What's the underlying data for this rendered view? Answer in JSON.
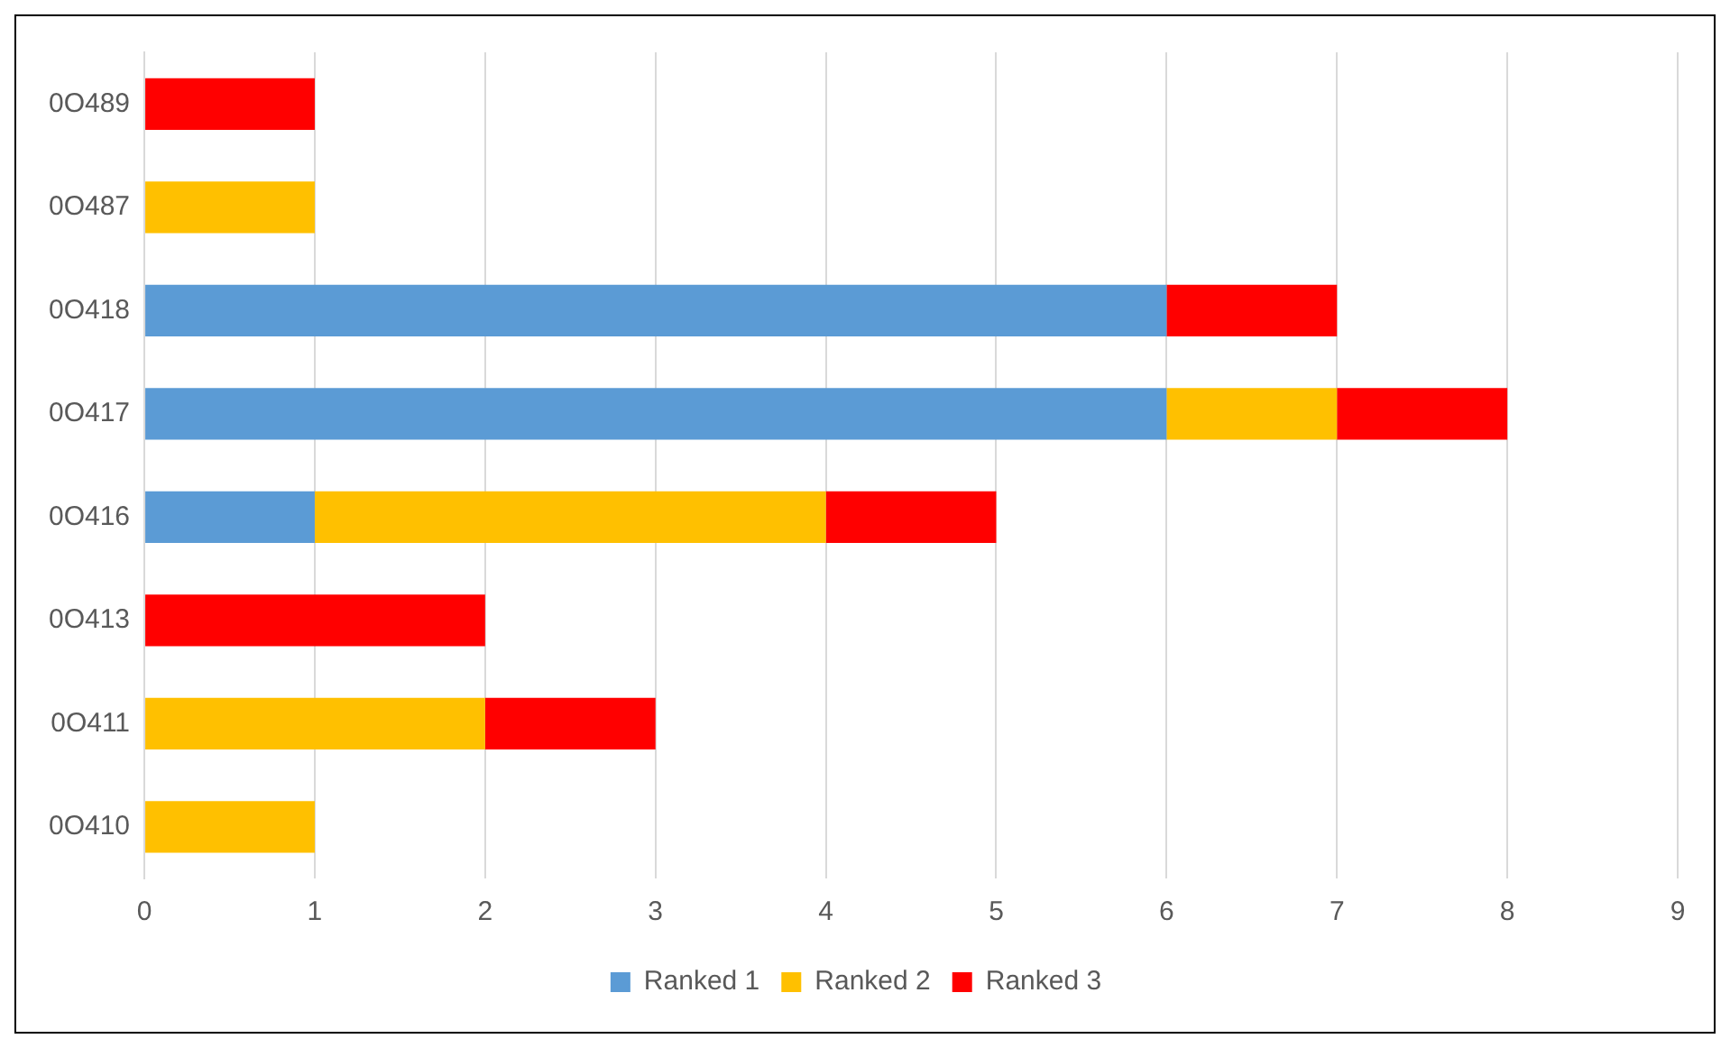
{
  "chart_data": {
    "type": "bar",
    "orientation": "horizontal",
    "stacked": true,
    "categories": [
      "0O489",
      "0O487",
      "0O418",
      "0O417",
      "0O416",
      "0O413",
      "0O411",
      "0O410"
    ],
    "series": [
      {
        "name": "Ranked 1",
        "color": "#5b9bd5",
        "values": [
          null,
          null,
          6,
          6,
          1,
          null,
          null,
          null
        ]
      },
      {
        "name": "Ranked 2",
        "color": "#ffc000",
        "values": [
          null,
          1,
          null,
          1,
          3,
          null,
          2,
          1
        ]
      },
      {
        "name": "Ranked 3",
        "color": "#ff0000",
        "values": [
          1,
          null,
          1,
          1,
          1,
          2,
          1,
          null
        ]
      }
    ],
    "xlim": [
      0,
      9
    ],
    "xticks": [
      0,
      1,
      2,
      3,
      4,
      5,
      6,
      7,
      8,
      9
    ],
    "grid": "x",
    "legend": "bottom"
  }
}
